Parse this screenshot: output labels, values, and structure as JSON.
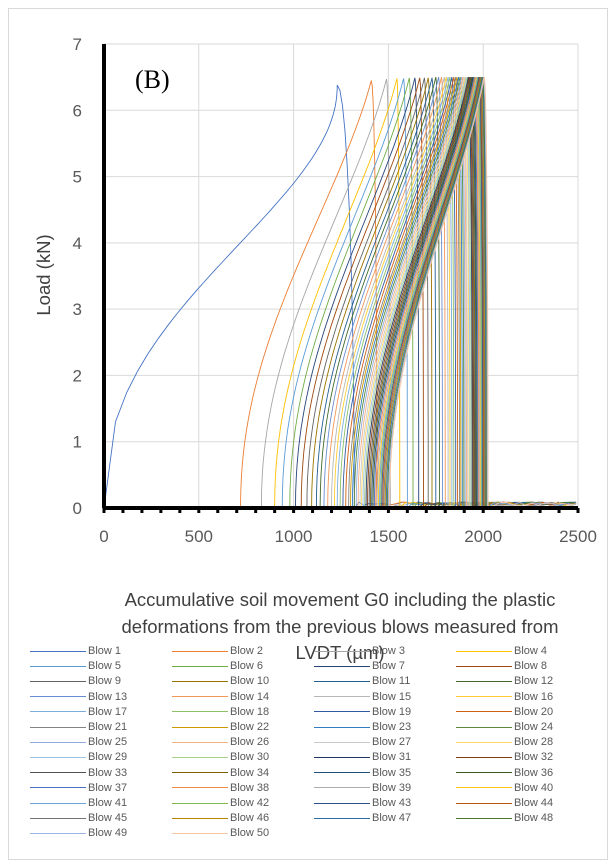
{
  "chart_data": {
    "type": "line",
    "panel_label": "(B)",
    "xlabel_lines": [
      "Accumulative soil movement G0 including the plastic",
      "deformations from the previous blows measured from",
      "LVDT (µm)"
    ],
    "ylabel": "Load (kN)",
    "xlim": [
      0,
      2500
    ],
    "ylim": [
      0,
      7
    ],
    "xticks": [
      "0",
      "500",
      "1000",
      "1500",
      "2000",
      "2500"
    ],
    "yticks": [
      "0",
      "1",
      "2",
      "3",
      "4",
      "5",
      "6",
      "7"
    ],
    "grid": true,
    "legend_position": "bottom",
    "series": [
      {
        "name": "Blow 1",
        "color": "#4472c4",
        "start": 0,
        "peak": 1230,
        "end": 1320,
        "max_load": 6.38
      },
      {
        "name": "Blow 2",
        "color": "#ed7d31",
        "start": 720,
        "peak": 1410,
        "end": 1440,
        "max_load": 6.45
      },
      {
        "name": "Blow 3",
        "color": "#a5a5a5",
        "start": 830,
        "peak": 1490,
        "end": 1510,
        "max_load": 6.47
      },
      {
        "name": "Blow 4",
        "color": "#ffc000",
        "start": 900,
        "peak": 1545,
        "end": 1560,
        "max_load": 6.48
      },
      {
        "name": "Blow 5",
        "color": "#5b9bd5",
        "start": 940,
        "peak": 1580,
        "end": 1600,
        "max_load": 6.48
      },
      {
        "name": "Blow 6",
        "color": "#70ad47",
        "start": 980,
        "peak": 1610,
        "end": 1630,
        "max_load": 6.49
      },
      {
        "name": "Blow 7",
        "color": "#264478",
        "start": 1010,
        "peak": 1640,
        "end": 1660,
        "max_load": 6.49
      },
      {
        "name": "Blow 8",
        "color": "#9e480e",
        "start": 1040,
        "peak": 1665,
        "end": 1685,
        "max_load": 6.49
      },
      {
        "name": "Blow 9",
        "color": "#636363",
        "start": 1070,
        "peak": 1690,
        "end": 1710,
        "max_load": 6.49
      },
      {
        "name": "Blow 10",
        "color": "#997300",
        "start": 1095,
        "peak": 1710,
        "end": 1730,
        "max_load": 6.49
      },
      {
        "name": "Blow 11",
        "color": "#255e91",
        "start": 1120,
        "peak": 1730,
        "end": 1750,
        "max_load": 6.49
      },
      {
        "name": "Blow 12",
        "color": "#43682b",
        "start": 1140,
        "peak": 1750,
        "end": 1770,
        "max_load": 6.5
      },
      {
        "name": "Blow 13",
        "color": "#698ed0",
        "start": 1160,
        "peak": 1765,
        "end": 1785,
        "max_load": 6.5
      },
      {
        "name": "Blow 14",
        "color": "#f1975a",
        "start": 1180,
        "peak": 1780,
        "end": 1800,
        "max_load": 6.5
      },
      {
        "name": "Blow 15",
        "color": "#b7b7b7",
        "start": 1200,
        "peak": 1795,
        "end": 1815,
        "max_load": 6.5
      },
      {
        "name": "Blow 16",
        "color": "#ffcd33",
        "start": 1215,
        "peak": 1805,
        "end": 1825,
        "max_load": 6.5
      },
      {
        "name": "Blow 17",
        "color": "#7cafdd",
        "start": 1230,
        "peak": 1815,
        "end": 1835,
        "max_load": 6.5
      },
      {
        "name": "Blow 18",
        "color": "#8cc168",
        "start": 1245,
        "peak": 1825,
        "end": 1845,
        "max_load": 6.5
      },
      {
        "name": "Blow 19",
        "color": "#335aa1",
        "start": 1260,
        "peak": 1835,
        "end": 1855,
        "max_load": 6.5
      },
      {
        "name": "Blow 20",
        "color": "#d26012",
        "start": 1275,
        "peak": 1845,
        "end": 1865,
        "max_load": 6.5
      },
      {
        "name": "Blow 21",
        "color": "#848484",
        "start": 1290,
        "peak": 1855,
        "end": 1875,
        "max_load": 6.5
      },
      {
        "name": "Blow 22",
        "color": "#cc9a00",
        "start": 1300,
        "peak": 1862,
        "end": 1882,
        "max_load": 6.5
      },
      {
        "name": "Blow 23",
        "color": "#327dc2",
        "start": 1310,
        "peak": 1870,
        "end": 1890,
        "max_load": 6.5
      },
      {
        "name": "Blow 24",
        "color": "#5a8a39",
        "start": 1320,
        "peak": 1878,
        "end": 1898,
        "max_load": 6.5
      },
      {
        "name": "Blow 25",
        "color": "#8faadc",
        "start": 1330,
        "peak": 1885,
        "end": 1905,
        "max_load": 6.5
      },
      {
        "name": "Blow 26",
        "color": "#f4b183",
        "start": 1340,
        "peak": 1892,
        "end": 1912,
        "max_load": 6.5
      },
      {
        "name": "Blow 27",
        "color": "#c9c9c9",
        "start": 1350,
        "peak": 1898,
        "end": 1918,
        "max_load": 6.5
      },
      {
        "name": "Blow 28",
        "color": "#ffd966",
        "start": 1358,
        "peak": 1905,
        "end": 1925,
        "max_load": 6.5
      },
      {
        "name": "Blow 29",
        "color": "#9dc3e6",
        "start": 1366,
        "peak": 1910,
        "end": 1930,
        "max_load": 6.5
      },
      {
        "name": "Blow 30",
        "color": "#a9d18e",
        "start": 1374,
        "peak": 1916,
        "end": 1936,
        "max_load": 6.5
      },
      {
        "name": "Blow 31",
        "color": "#203864",
        "start": 1382,
        "peak": 1922,
        "end": 1942,
        "max_load": 6.5
      },
      {
        "name": "Blow 32",
        "color": "#843c0c",
        "start": 1390,
        "peak": 1927,
        "end": 1947,
        "max_load": 6.5
      },
      {
        "name": "Blow 33",
        "color": "#525252",
        "start": 1398,
        "peak": 1932,
        "end": 1952,
        "max_load": 6.5
      },
      {
        "name": "Blow 34",
        "color": "#7f6000",
        "start": 1405,
        "peak": 1937,
        "end": 1957,
        "max_load": 6.5
      },
      {
        "name": "Blow 35",
        "color": "#1f4e79",
        "start": 1412,
        "peak": 1942,
        "end": 1962,
        "max_load": 6.5
      },
      {
        "name": "Blow 36",
        "color": "#385723",
        "start": 1419,
        "peak": 1947,
        "end": 1967,
        "max_load": 6.5
      },
      {
        "name": "Blow 37",
        "color": "#4a6fc4",
        "start": 1426,
        "peak": 1952,
        "end": 1972,
        "max_load": 6.5
      },
      {
        "name": "Blow 38",
        "color": "#f08a4b",
        "start": 1433,
        "peak": 1957,
        "end": 1977,
        "max_load": 6.5
      },
      {
        "name": "Blow 39",
        "color": "#adadad",
        "start": 1440,
        "peak": 1962,
        "end": 1982,
        "max_load": 6.5
      },
      {
        "name": "Blow 40",
        "color": "#ffc61a",
        "start": 1447,
        "peak": 1966,
        "end": 1986,
        "max_load": 6.5
      },
      {
        "name": "Blow 41",
        "color": "#6aa5d9",
        "start": 1453,
        "peak": 1970,
        "end": 1990,
        "max_load": 6.5
      },
      {
        "name": "Blow 42",
        "color": "#7fb757",
        "start": 1459,
        "peak": 1974,
        "end": 1994,
        "max_load": 6.5
      },
      {
        "name": "Blow 43",
        "color": "#2c4f8c",
        "start": 1465,
        "peak": 1978,
        "end": 1998,
        "max_load": 6.5
      },
      {
        "name": "Blow 44",
        "color": "#b85410",
        "start": 1471,
        "peak": 1982,
        "end": 2002,
        "max_load": 6.5
      },
      {
        "name": "Blow 45",
        "color": "#747474",
        "start": 1477,
        "peak": 1986,
        "end": 2006,
        "max_load": 6.5
      },
      {
        "name": "Blow 46",
        "color": "#b38600",
        "start": 1483,
        "peak": 1990,
        "end": 2010,
        "max_load": 6.5
      },
      {
        "name": "Blow 47",
        "color": "#2c6da9",
        "start": 1489,
        "peak": 1994,
        "end": 2014,
        "max_load": 6.5
      },
      {
        "name": "Blow 48",
        "color": "#4f7a32",
        "start": 1495,
        "peak": 1998,
        "end": 2018,
        "max_load": 6.5
      },
      {
        "name": "Blow 49",
        "color": "#9db4e3",
        "start": 1500,
        "peak": 2002,
        "end": 2022,
        "max_load": 6.5
      },
      {
        "name": "Blow 50",
        "color": "#f7c4a0",
        "start": 1505,
        "peak": 2006,
        "end": 2026,
        "max_load": 6.5
      }
    ]
  }
}
